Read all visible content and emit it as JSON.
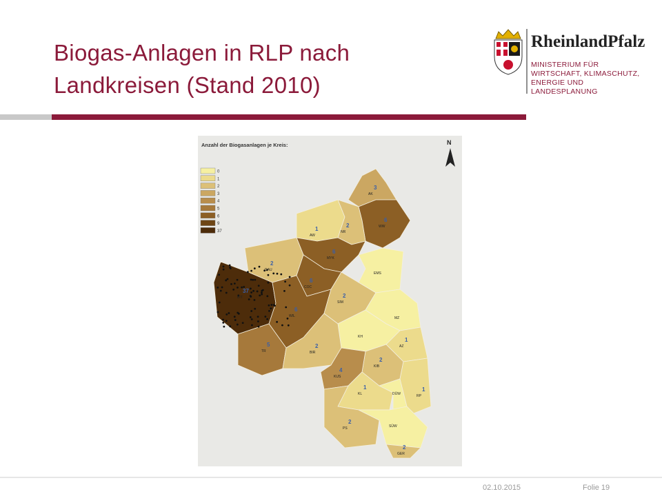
{
  "header": {
    "title_lines": [
      "Biogas-Anlagen in RLP nach",
      "Landkreisen (Stand 2010)"
    ]
  },
  "logo": {
    "name": "RheinlandPfalz",
    "ministry_lines": [
      "MINISTERIUM FÜR",
      "WIRTSCHAFT, KLIMASCHUTZ,",
      "ENERGIE UND",
      "LANDESPLANUNG"
    ]
  },
  "map": {
    "title": "Anzahl der Biogasanlagen je Kreis:",
    "north": "N",
    "legend": [
      {
        "label": "0",
        "color": "#f6f0a2"
      },
      {
        "label": "1",
        "color": "#ecdb8c"
      },
      {
        "label": "2",
        "color": "#dcc078"
      },
      {
        "label": "3",
        "color": "#cba762"
      },
      {
        "label": "4",
        "color": "#b88d4c"
      },
      {
        "label": "5",
        "color": "#a6793b"
      },
      {
        "label": "6",
        "color": "#8c5f25"
      },
      {
        "label": "9",
        "color": "#6e4515"
      },
      {
        "label": "37",
        "color": "#4d2c0a"
      }
    ],
    "districts": [
      {
        "code": "AK",
        "count": "3"
      },
      {
        "code": "WW",
        "count": "6"
      },
      {
        "code": "AW",
        "count": "1"
      },
      {
        "code": "NR",
        "count": "2"
      },
      {
        "code": "MYK",
        "count": "6"
      },
      {
        "code": "EMS"
      },
      {
        "code": "DAU",
        "count": "2"
      },
      {
        "code": "BIT",
        "count": "37"
      },
      {
        "code": "COC",
        "count": "6"
      },
      {
        "code": "WIL",
        "count": "6"
      },
      {
        "code": "SIM",
        "count": "2"
      },
      {
        "code": "TR",
        "count": "5"
      },
      {
        "code": "MZ"
      },
      {
        "code": "KH"
      },
      {
        "code": "BIR",
        "count": "2"
      },
      {
        "code": "AZ",
        "count": "1"
      },
      {
        "code": "KIB",
        "count": "2"
      },
      {
        "code": "KUS",
        "count": "4"
      },
      {
        "code": "KL",
        "count": "1"
      },
      {
        "code": "DÜW"
      },
      {
        "code": "RP",
        "count": "1"
      },
      {
        "code": "PS",
        "count": "2"
      },
      {
        "code": "SÜW"
      },
      {
        "code": "GER",
        "count": "2"
      }
    ]
  },
  "footer": {
    "date": "02.10.2015",
    "slide": "Folie 19"
  }
}
